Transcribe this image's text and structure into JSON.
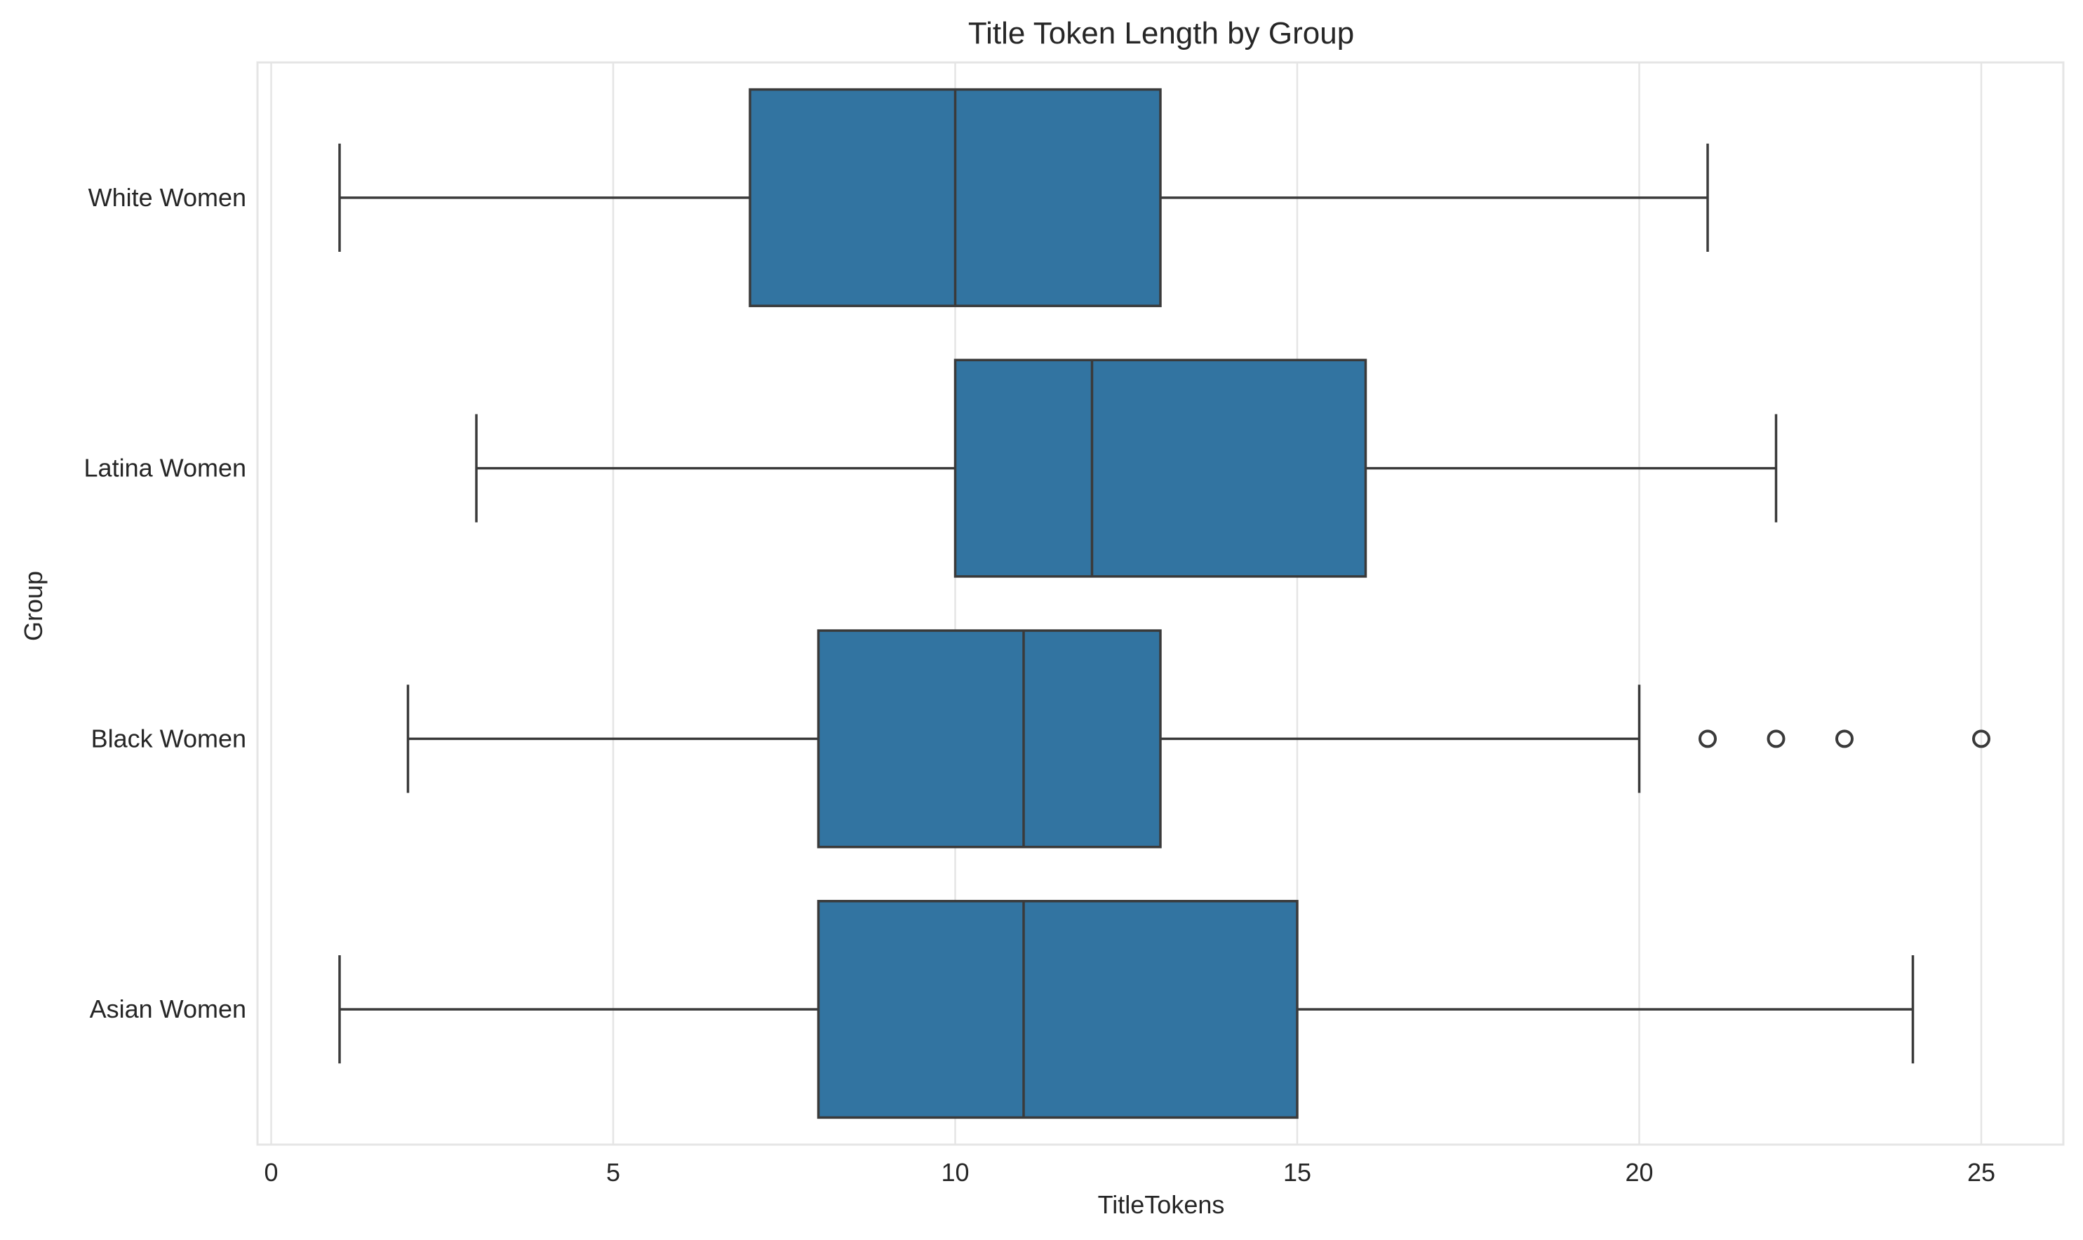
{
  "chart_data": {
    "type": "boxplot",
    "orientation": "horizontal",
    "title": "Title Token Length by Group",
    "xlabel": "TitleTokens",
    "ylabel": "Group",
    "xlim": [
      -0.2,
      26.2
    ],
    "xticks": [
      0,
      5,
      10,
      15,
      20,
      25
    ],
    "grid": true,
    "box_color": "#3274a1",
    "line_color": "#3a3a3a",
    "categories": [
      "White Women",
      "Latina Women",
      "Black Women",
      "Asian Women"
    ],
    "boxes": [
      {
        "group": "White Women",
        "whisker_low": 1,
        "q1": 7,
        "median": 10,
        "q3": 13,
        "whisker_high": 21,
        "fliers": []
      },
      {
        "group": "Latina Women",
        "whisker_low": 3,
        "q1": 10,
        "median": 12,
        "q3": 16,
        "whisker_high": 22,
        "fliers": []
      },
      {
        "group": "Black Women",
        "whisker_low": 2,
        "q1": 8,
        "median": 11,
        "q3": 13,
        "whisker_high": 20,
        "fliers": [
          21,
          22,
          23,
          25
        ]
      },
      {
        "group": "Asian Women",
        "whisker_low": 1,
        "q1": 8,
        "median": 11,
        "q3": 15,
        "whisker_high": 24,
        "fliers": []
      }
    ]
  }
}
